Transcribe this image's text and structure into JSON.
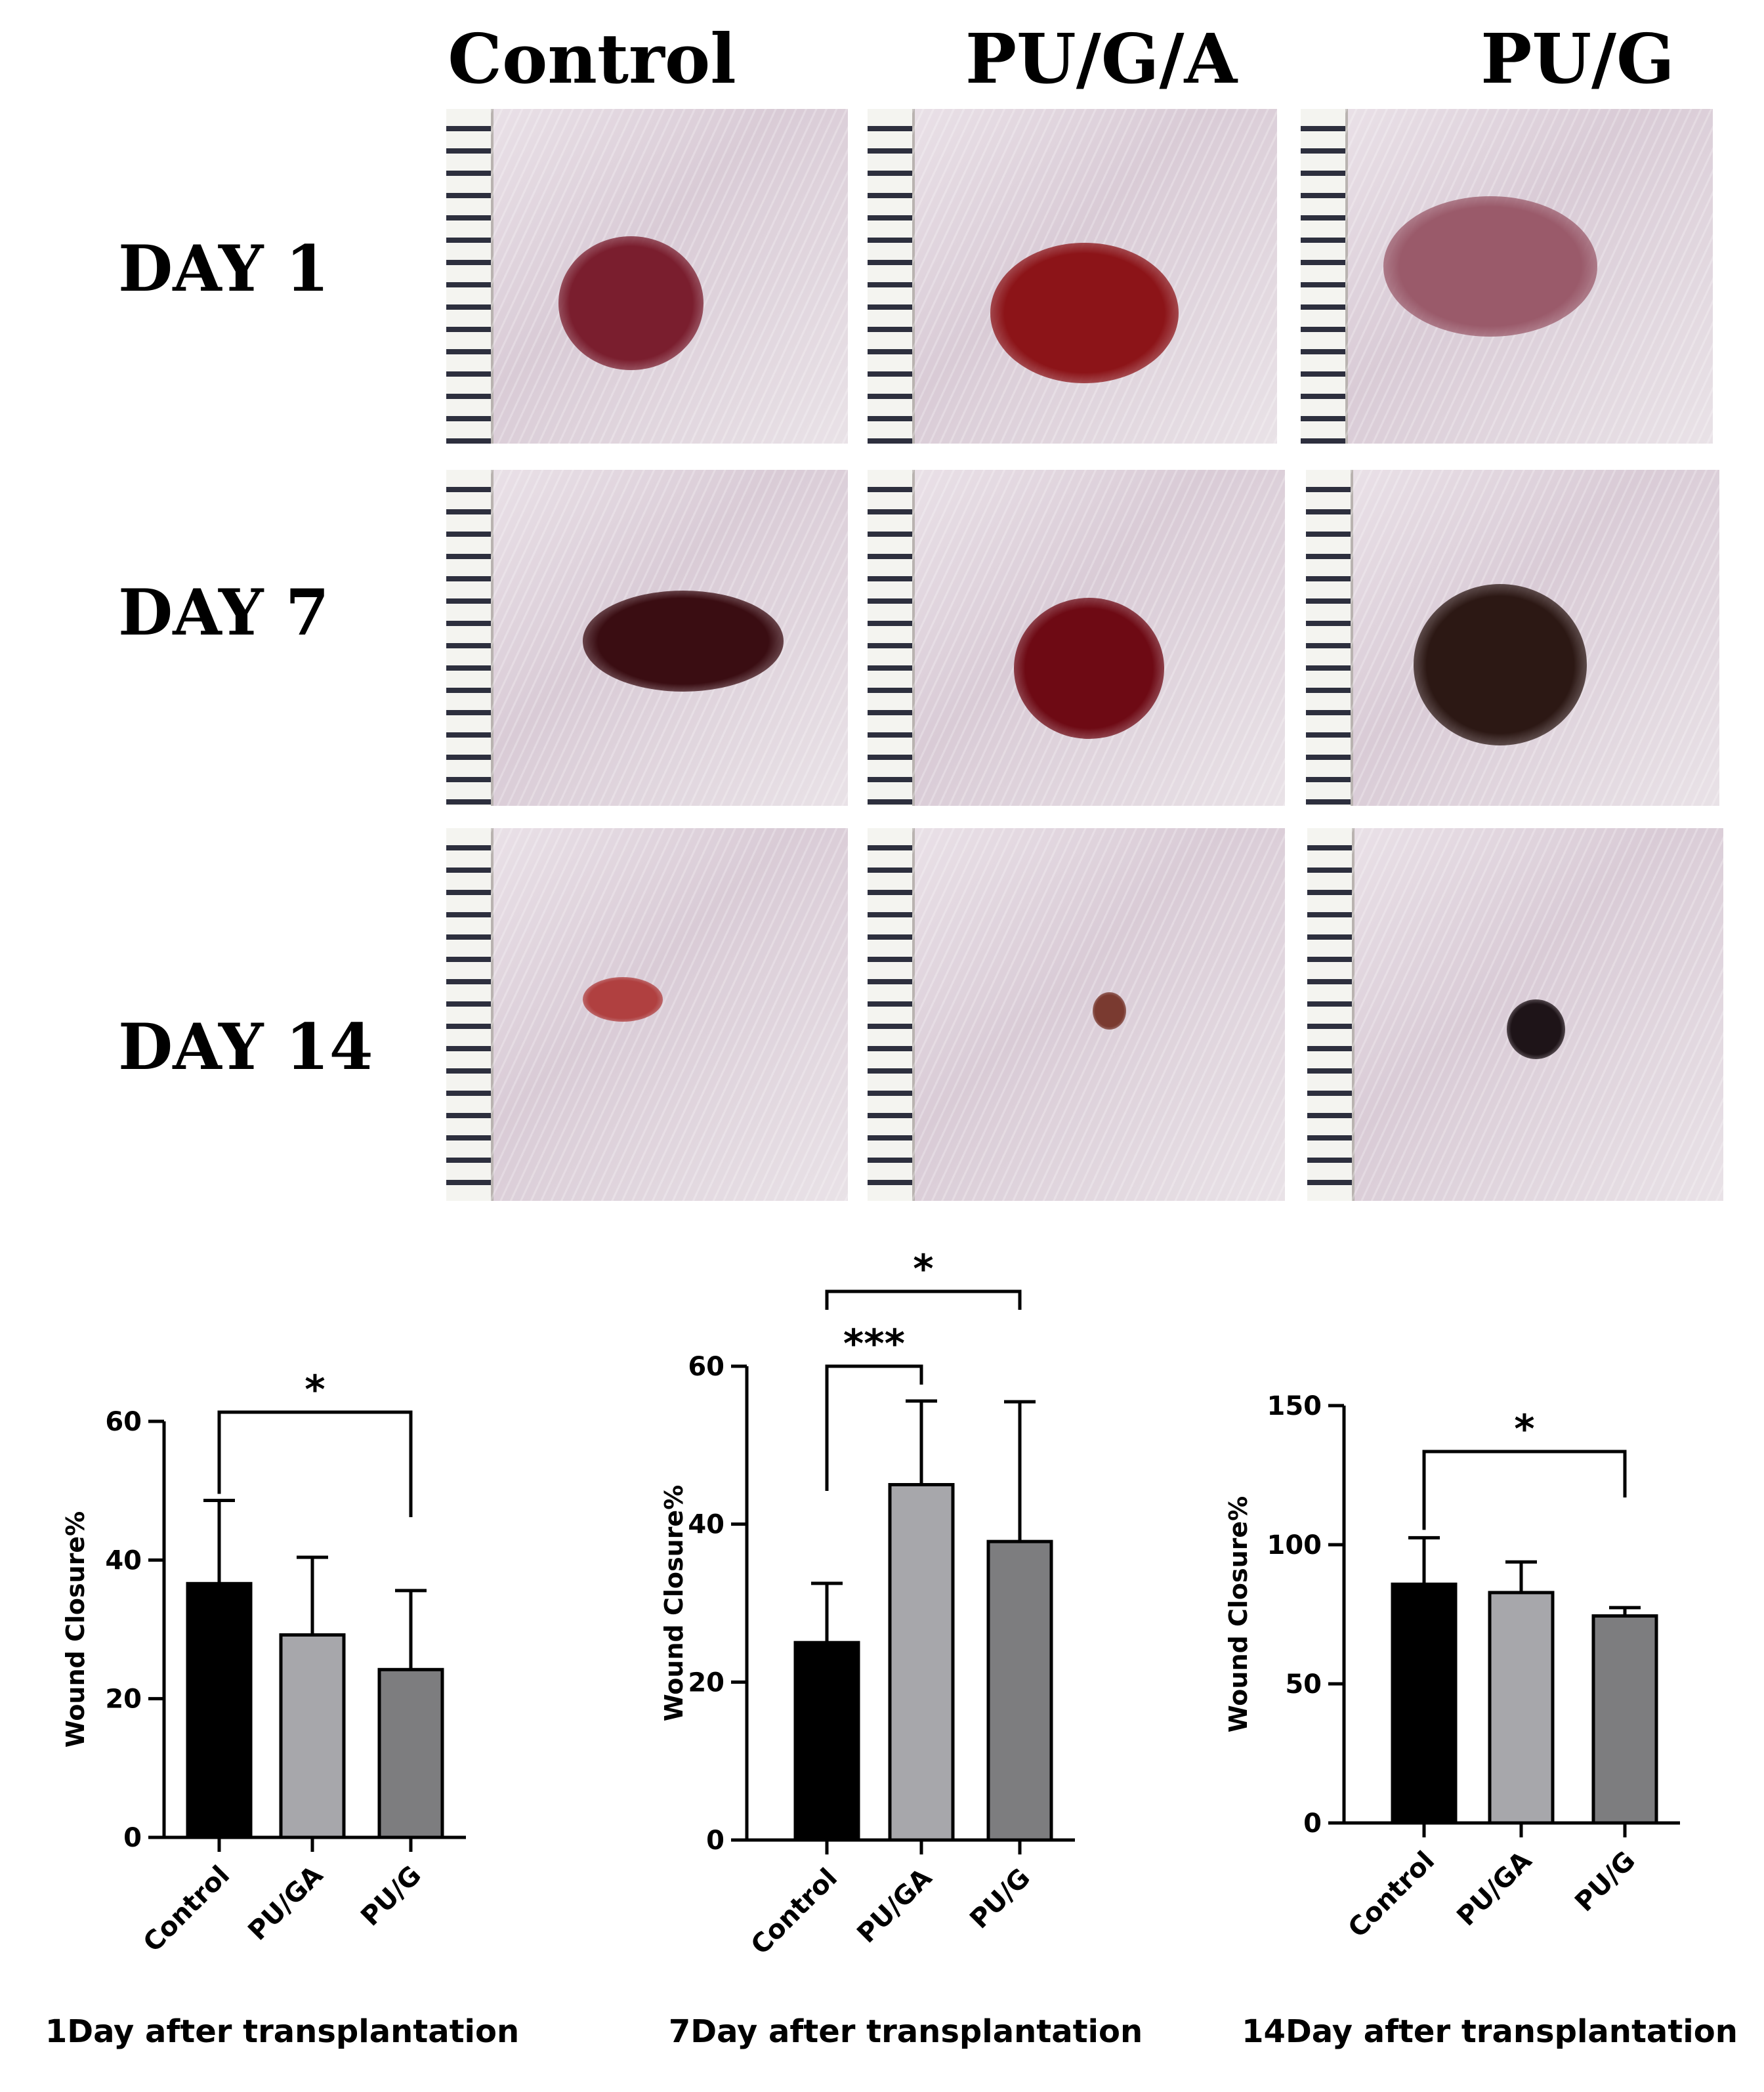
{
  "figure": {
    "column_headers": [
      "Control",
      "PU/G/A",
      "PU/G"
    ],
    "row_labels": [
      "DAY 1",
      "DAY 7",
      "DAY 14"
    ],
    "photos": [
      {
        "day": "DAY 1",
        "group": "Control",
        "wound_color": "#7a1e2e"
      },
      {
        "day": "DAY 1",
        "group": "PU/G/A",
        "wound_color": "#8c1418"
      },
      {
        "day": "DAY 1",
        "group": "PU/G",
        "wound_color": "#9a5a6a"
      },
      {
        "day": "DAY 7",
        "group": "Control",
        "wound_color": "#3a0d12"
      },
      {
        "day": "DAY 7",
        "group": "PU/G/A",
        "wound_color": "#6e0a14"
      },
      {
        "day": "DAY 7",
        "group": "PU/G",
        "wound_color": "#2c1814"
      },
      {
        "day": "DAY 14",
        "group": "Control",
        "wound_color": "#b04040"
      },
      {
        "day": "DAY 14",
        "group": "PU/G/A",
        "wound_color": "#7a3a30"
      },
      {
        "day": "DAY 14",
        "group": "PU/G",
        "wound_color": "#1e1418"
      }
    ]
  },
  "chart_data": [
    {
      "type": "bar",
      "title": "1Day after transplantation",
      "ylabel": "Wound Closure%",
      "categories": [
        "Control",
        "PU/GA",
        "PU/G"
      ],
      "values": [
        36.6,
        29.2,
        24.2
      ],
      "errors": [
        12.0,
        11.2,
        11.4
      ],
      "colors": [
        "#000000",
        "#a7a7ab",
        "#7d7d7f"
      ],
      "ylim": [
        0,
        60
      ],
      "yticks": [
        0,
        20,
        40,
        60
      ],
      "ytick_labels": [
        "0",
        "20",
        "40",
        "60"
      ],
      "significance": [
        {
          "from": 0,
          "to": 2,
          "label": "*"
        }
      ]
    },
    {
      "type": "bar",
      "title": "7Day after transplantation",
      "ylabel": "Wound Closure%",
      "categories": [
        "Control",
        "PU/GA",
        "PU/G"
      ],
      "values": [
        25.0,
        45.0,
        37.8
      ],
      "errors": [
        7.5,
        10.6,
        17.7
      ],
      "colors": [
        "#000000",
        "#a7a7ab",
        "#7d7d7f"
      ],
      "ylim": [
        0,
        60
      ],
      "yticks": [
        0,
        20,
        40,
        60
      ],
      "ytick_labels": [
        "0",
        "20",
        "40",
        "60"
      ],
      "significance": [
        {
          "from": 0,
          "to": 1,
          "label": "***"
        },
        {
          "from": 0,
          "to": 2,
          "label": "*"
        }
      ]
    },
    {
      "type": "bar",
      "title": "14Day after transplantation",
      "ylabel": "Wound Closure%",
      "categories": [
        "Control",
        "PU/GA",
        "PU/G"
      ],
      "values": [
        85.8,
        82.8,
        74.4
      ],
      "errors": [
        16.7,
        11.0,
        3.0
      ],
      "colors": [
        "#000000",
        "#a7a7ab",
        "#7d7d7f"
      ],
      "ylim": [
        0,
        150
      ],
      "yticks": [
        0,
        50,
        100,
        150
      ],
      "ytick_labels": [
        "0",
        "50",
        "100",
        "150"
      ],
      "significance": [
        {
          "from": 0,
          "to": 2,
          "label": "*"
        }
      ]
    }
  ]
}
